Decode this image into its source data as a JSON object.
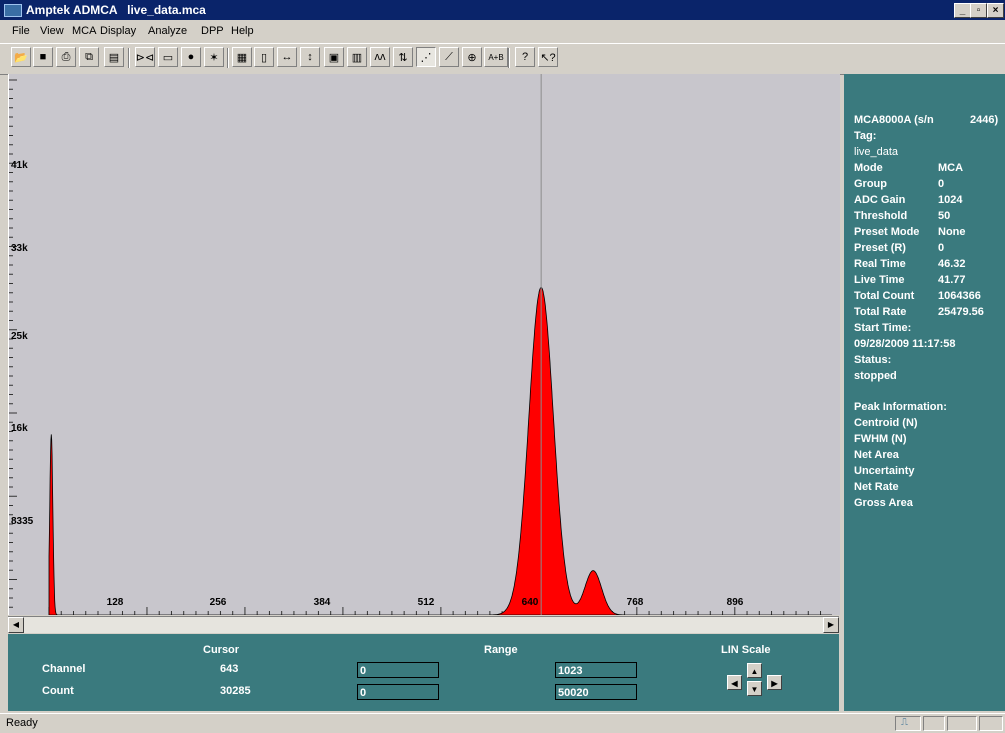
{
  "window": {
    "app_name": "Amptek ADMCA",
    "file_name": "live_data.mca"
  },
  "menu": [
    "File",
    "View",
    "MCA",
    "Display",
    "Analyze",
    "DPP",
    "Help"
  ],
  "toolbar": {
    "buttons": [
      {
        "name": "open-icon",
        "glyph": "📂"
      },
      {
        "name": "save-icon",
        "glyph": "■"
      },
      {
        "name": "print-icon",
        "glyph": "⎙"
      },
      {
        "name": "copy-icon",
        "glyph": "⧉"
      },
      {
        "name": "report-icon",
        "glyph": "▤"
      },
      {
        "name": "connect-icon",
        "glyph": "⊳⊲"
      },
      {
        "name": "device-icon",
        "glyph": "▭"
      },
      {
        "name": "traffic-light-icon",
        "glyph": "●"
      },
      {
        "name": "wand-icon",
        "glyph": "✶"
      },
      {
        "name": "color-display-icon",
        "glyph": "▦"
      },
      {
        "name": "page-icon",
        "glyph": "▯"
      },
      {
        "name": "horizontal-expand-icon",
        "glyph": "↔"
      },
      {
        "name": "vertical-expand-icon",
        "glyph": "↕"
      },
      {
        "name": "box-zoom-icon",
        "glyph": "▣"
      },
      {
        "name": "bar-plot-icon",
        "glyph": "▥"
      },
      {
        "name": "peak-icon",
        "glyph": "ʌʌ"
      },
      {
        "name": "auto-scale-icon",
        "glyph": "⇅"
      },
      {
        "name": "dot-plot-icon",
        "glyph": "⋰"
      },
      {
        "name": "line-plot-icon",
        "glyph": "⟋"
      },
      {
        "name": "zoom-icon",
        "glyph": "⊕"
      },
      {
        "name": "add-spectra-icon",
        "glyph": "A+B"
      },
      {
        "name": "help-icon",
        "glyph": "?"
      },
      {
        "name": "context-help-icon",
        "glyph": "↖?"
      }
    ]
  },
  "plot": {
    "y_ticks": [
      "41k",
      "33k",
      "25k",
      "16k",
      "8335"
    ],
    "x_ticks": [
      "128",
      "256",
      "384",
      "512",
      "640",
      "768",
      "896"
    ],
    "fill_color": "#ff0000",
    "background_color": "#c8c6cc"
  },
  "chart_data": {
    "type": "area",
    "xlim": [
      0,
      1023
    ],
    "ylim": [
      0,
      50020
    ],
    "cursor_channel": 643,
    "peaks": [
      {
        "center": 3,
        "height": 16700,
        "sigma": 2
      },
      {
        "center": 643,
        "height": 30285,
        "sigma": 16
      },
      {
        "center": 711,
        "height": 4100,
        "sigma": 11
      }
    ]
  },
  "info": {
    "device": "MCA8000A (s/n",
    "serial": "2446)",
    "tag_label": "Tag:",
    "tag_value": "live_data",
    "rows": [
      {
        "label": "Mode",
        "value": "MCA"
      },
      {
        "label": "Group",
        "value": "0"
      },
      {
        "label": "ADC Gain",
        "value": "1024"
      },
      {
        "label": "Threshold",
        "value": "50"
      },
      {
        "label": "Preset Mode",
        "value": "None"
      },
      {
        "label": "Preset (R)",
        "value": "0"
      },
      {
        "label": "Real Time",
        "value": "46.32"
      },
      {
        "label": "Live Time",
        "value": "41.77"
      },
      {
        "label": "Total Count",
        "value": "1064366"
      },
      {
        "label": "Total Rate",
        "value": "25479.56"
      }
    ],
    "start_time_label": "Start Time:",
    "start_time_value": "09/28/2009 11:17:58",
    "status_label": "Status:",
    "status_value": "stopped",
    "peak_header": "Peak Information:",
    "peak_items": [
      "Centroid (N)",
      "FWHM (N)",
      "Net Area",
      "Uncertainty",
      "Net Rate",
      "Gross Area"
    ]
  },
  "bottom": {
    "cursor_header": "Cursor",
    "range_header": "Range",
    "scale_header": "LIN Scale",
    "channel_label": "Channel",
    "count_label": "Count",
    "cursor_channel": "643",
    "cursor_count": "30285",
    "range_channel_min": "0",
    "range_channel_max": "1023",
    "range_count_min": "0",
    "range_count_max": "50020"
  },
  "status": {
    "text": "Ready"
  }
}
